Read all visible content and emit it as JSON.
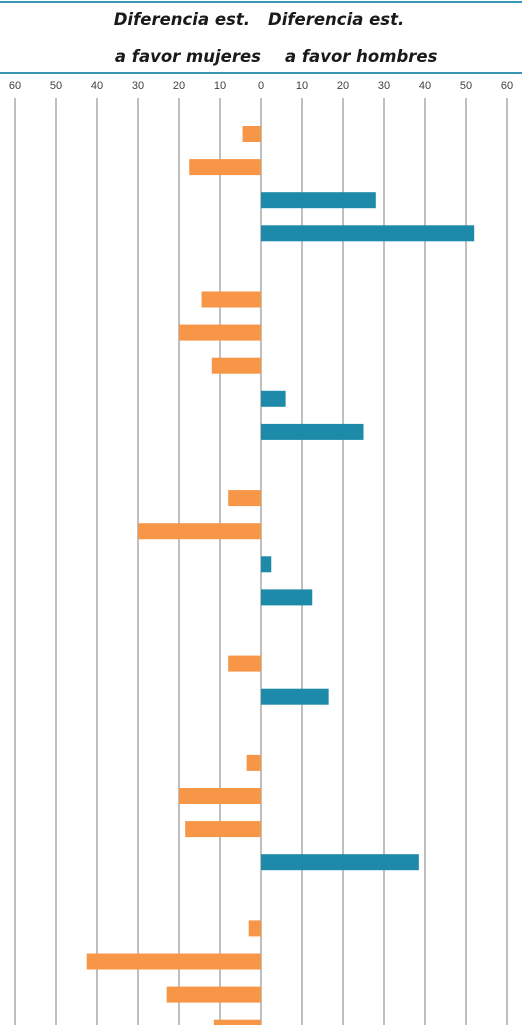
{
  "chart_data": {
    "type": "bar",
    "orientation": "horizontal-diverging",
    "header_left": [
      "Diferencia est.",
      "a favor mujeres"
    ],
    "header_right": [
      "Diferencia est.",
      "a favor hombres"
    ],
    "x_tick_labels": [
      "60",
      "50",
      "40",
      "30",
      "20",
      "10",
      "0",
      "10",
      "20",
      "30",
      "40",
      "50",
      "60"
    ],
    "xlim": [
      -60,
      60
    ],
    "grid": true,
    "colors": {
      "mujeres": "#f79646",
      "hombres": "#1c8aa8",
      "frame": "#3797b4",
      "grid": "#7f7f7f"
    },
    "values": [
      -4.5,
      -17.5,
      28,
      52,
      null,
      -14.5,
      -20,
      -12,
      6,
      25,
      null,
      -8,
      -30,
      2.5,
      12.5,
      null,
      -8,
      16.5,
      null,
      -3.5,
      -20,
      -18.5,
      38.5,
      null,
      -3,
      -42.5,
      -23,
      -11.5
    ]
  }
}
